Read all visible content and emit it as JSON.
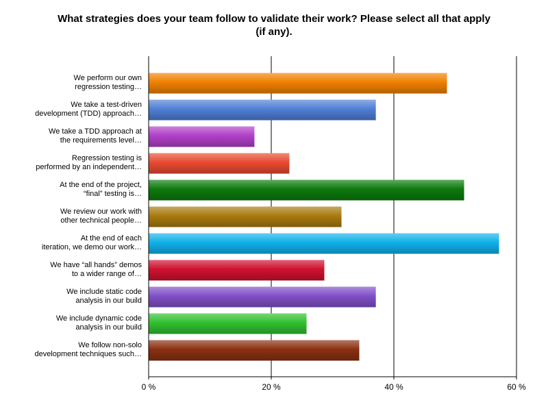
{
  "chart_data": {
    "type": "bar",
    "orientation": "horizontal",
    "title": "What strategies does your team follow to validate their work?  Please select all that apply (if any).",
    "title_lines": [
      "What strategies does your team follow to validate their work?  Please select all that apply",
      "(if any)."
    ],
    "xlabel": "",
    "ylabel": "",
    "xlim": [
      0,
      60
    ],
    "x_ticks": [
      "0 %",
      "20 %",
      "40 %",
      "60 %"
    ],
    "grid": true,
    "legend": "none",
    "categories": [
      [
        "We perform our own",
        "regression testing…"
      ],
      [
        "We take a test-driven",
        "development (TDD) approach…"
      ],
      [
        "We take a TDD approach at",
        "the requirements level…"
      ],
      [
        "Regression testing is",
        "performed by an independent…"
      ],
      [
        "At the end of the project,",
        "“final” testing is…"
      ],
      [
        "We review our work with",
        "other technical people…"
      ],
      [
        "At the end of each",
        "iteration, we demo our work…"
      ],
      [
        "We have “all hands” demos",
        "to a wider range of…"
      ],
      [
        "We include static code",
        "analysis in our build"
      ],
      [
        "We include dynamic code",
        "analysis in our build"
      ],
      [
        "We follow non-solo",
        "development techniques such…"
      ]
    ],
    "values": [
      48.6,
      37.0,
      17.2,
      22.9,
      51.4,
      31.4,
      57.1,
      28.6,
      37.0,
      25.7,
      34.3
    ],
    "colors": [
      "#f08000",
      "#4f7fd6",
      "#b040c8",
      "#e84a30",
      "#0c7a0c",
      "#a87a10",
      "#10b0ea",
      "#d01030",
      "#8050c8",
      "#30c030",
      "#8a3010"
    ]
  }
}
